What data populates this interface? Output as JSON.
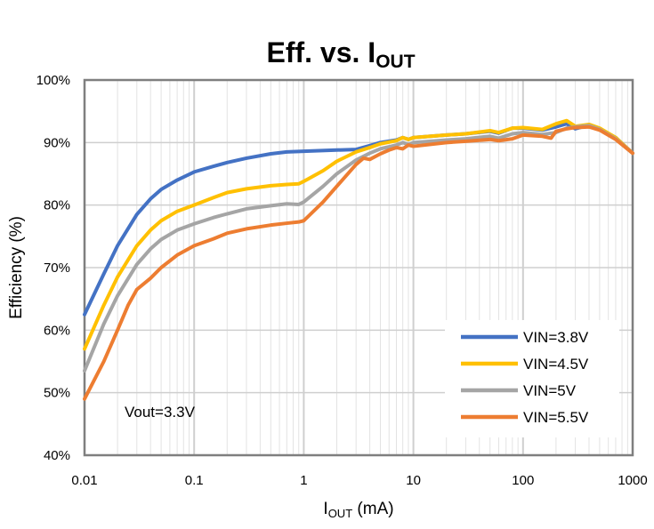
{
  "chart_data": {
    "type": "line",
    "title": {
      "main": "Eff. vs. I",
      "sub": "OUT"
    },
    "xlabel": {
      "main": "I",
      "sub": "OUT",
      "unit": " (mA)"
    },
    "ylabel": "Efficiency (%)",
    "x_scale": "log",
    "xlim": [
      0.01,
      1000
    ],
    "ylim": [
      40,
      100
    ],
    "x_ticks": [
      "0.01",
      "0.1",
      "1",
      "10",
      "100",
      "1000"
    ],
    "x_tick_values": [
      0.01,
      0.1,
      1,
      10,
      100,
      1000
    ],
    "y_ticks": [
      "40%",
      "50%",
      "60%",
      "70%",
      "80%",
      "90%",
      "100%"
    ],
    "y_tick_values": [
      40,
      50,
      60,
      70,
      80,
      90,
      100
    ],
    "grid": true,
    "legend_position": "bottom-right",
    "annotation": "Vout=3.3V",
    "series": [
      {
        "name": "VIN=3.8V",
        "color": "#4472C4",
        "points": [
          [
            0.01,
            62.5
          ],
          [
            0.015,
            69
          ],
          [
            0.02,
            73.5
          ],
          [
            0.03,
            78.5
          ],
          [
            0.04,
            81
          ],
          [
            0.05,
            82.5
          ],
          [
            0.07,
            84
          ],
          [
            0.1,
            85.3
          ],
          [
            0.15,
            86.2
          ],
          [
            0.2,
            86.8
          ],
          [
            0.3,
            87.5
          ],
          [
            0.5,
            88.2
          ],
          [
            0.7,
            88.5
          ],
          [
            1,
            88.6
          ],
          [
            2,
            88.8
          ],
          [
            3,
            88.9
          ],
          [
            4,
            89.5
          ],
          [
            5,
            90
          ],
          [
            7,
            90.4
          ],
          [
            8,
            90.8
          ],
          [
            9,
            90.5
          ],
          [
            10,
            90.8
          ],
          [
            20,
            91.2
          ],
          [
            30,
            91.4
          ],
          [
            50,
            91.8
          ],
          [
            60,
            91.5
          ],
          [
            80,
            92.3
          ],
          [
            100,
            92.3
          ],
          [
            150,
            92
          ],
          [
            200,
            92.5
          ],
          [
            250,
            93
          ],
          [
            300,
            92.2
          ],
          [
            400,
            92.8
          ],
          [
            500,
            92.2
          ],
          [
            700,
            90.8
          ],
          [
            1000,
            88.3
          ]
        ]
      },
      {
        "name": "VIN=4.5V",
        "color": "#FFC000",
        "points": [
          [
            0.01,
            57
          ],
          [
            0.015,
            64
          ],
          [
            0.02,
            68.5
          ],
          [
            0.03,
            73.5
          ],
          [
            0.04,
            76
          ],
          [
            0.05,
            77.5
          ],
          [
            0.07,
            79
          ],
          [
            0.1,
            80
          ],
          [
            0.15,
            81.2
          ],
          [
            0.2,
            82
          ],
          [
            0.3,
            82.6
          ],
          [
            0.5,
            83.1
          ],
          [
            0.7,
            83.3
          ],
          [
            0.9,
            83.4
          ],
          [
            1,
            83.8
          ],
          [
            1.5,
            85.5
          ],
          [
            2,
            87
          ],
          [
            3,
            88.5
          ],
          [
            4,
            89.2
          ],
          [
            5,
            89.8
          ],
          [
            7,
            90.3
          ],
          [
            8,
            90.8
          ],
          [
            9,
            90.5
          ],
          [
            10,
            90.8
          ],
          [
            20,
            91.2
          ],
          [
            30,
            91.4
          ],
          [
            50,
            91.9
          ],
          [
            60,
            91.6
          ],
          [
            80,
            92.3
          ],
          [
            100,
            92.4
          ],
          [
            150,
            92.1
          ],
          [
            200,
            93
          ],
          [
            250,
            93.5
          ],
          [
            300,
            92.6
          ],
          [
            400,
            92.9
          ],
          [
            500,
            92.3
          ],
          [
            700,
            90.8
          ],
          [
            1000,
            88.3
          ]
        ]
      },
      {
        "name": "VIN=5V",
        "color": "#A5A5A5",
        "points": [
          [
            0.01,
            53.5
          ],
          [
            0.015,
            61
          ],
          [
            0.02,
            65.5
          ],
          [
            0.03,
            70.5
          ],
          [
            0.04,
            73
          ],
          [
            0.05,
            74.5
          ],
          [
            0.07,
            76
          ],
          [
            0.1,
            77
          ],
          [
            0.15,
            78
          ],
          [
            0.2,
            78.6
          ],
          [
            0.3,
            79.4
          ],
          [
            0.5,
            79.9
          ],
          [
            0.7,
            80.2
          ],
          [
            0.9,
            80.1
          ],
          [
            1,
            80.5
          ],
          [
            1.5,
            83
          ],
          [
            2,
            85
          ],
          [
            3,
            87.2
          ],
          [
            4,
            88.3
          ],
          [
            5,
            89
          ],
          [
            7,
            89.6
          ],
          [
            8,
            90
          ],
          [
            9,
            89.7
          ],
          [
            10,
            90
          ],
          [
            20,
            90.4
          ],
          [
            30,
            90.6
          ],
          [
            50,
            91
          ],
          [
            60,
            90.7
          ],
          [
            80,
            91.4
          ],
          [
            100,
            91.6
          ],
          [
            150,
            91.3
          ],
          [
            200,
            91.6
          ],
          [
            250,
            92.3
          ],
          [
            300,
            92.5
          ],
          [
            400,
            92.7
          ],
          [
            500,
            92.1
          ],
          [
            700,
            90.6
          ],
          [
            1000,
            88.3
          ]
        ]
      },
      {
        "name": "VIN=5.5V",
        "color": "#ED7D31",
        "points": [
          [
            0.01,
            49
          ],
          [
            0.015,
            55
          ],
          [
            0.02,
            60
          ],
          [
            0.025,
            64
          ],
          [
            0.03,
            66.5
          ],
          [
            0.04,
            68.3
          ],
          [
            0.05,
            70
          ],
          [
            0.07,
            72
          ],
          [
            0.1,
            73.5
          ],
          [
            0.15,
            74.6
          ],
          [
            0.2,
            75.5
          ],
          [
            0.3,
            76.2
          ],
          [
            0.5,
            76.8
          ],
          [
            0.7,
            77.1
          ],
          [
            0.9,
            77.3
          ],
          [
            1,
            77.5
          ],
          [
            1.5,
            80.5
          ],
          [
            2,
            83
          ],
          [
            3,
            86.5
          ],
          [
            3.5,
            87.5
          ],
          [
            4,
            87.3
          ],
          [
            5,
            88.2
          ],
          [
            6,
            88.8
          ],
          [
            7,
            89.2
          ],
          [
            8,
            89
          ],
          [
            9,
            89.6
          ],
          [
            10,
            89.4
          ],
          [
            20,
            90
          ],
          [
            30,
            90.2
          ],
          [
            50,
            90.5
          ],
          [
            60,
            90.3
          ],
          [
            80,
            90.6
          ],
          [
            100,
            91.2
          ],
          [
            150,
            91
          ],
          [
            180,
            90.7
          ],
          [
            200,
            91.8
          ],
          [
            250,
            92.2
          ],
          [
            300,
            92.4
          ],
          [
            400,
            92.5
          ],
          [
            500,
            92
          ],
          [
            700,
            90.5
          ],
          [
            1000,
            88.3
          ]
        ]
      }
    ]
  }
}
